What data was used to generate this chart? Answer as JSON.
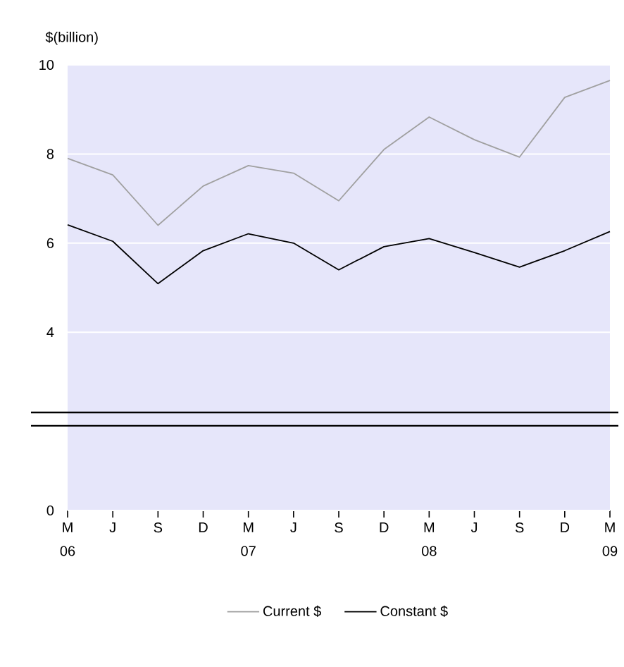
{
  "chart_data": {
    "type": "line",
    "ylabel": "$(billion)",
    "categories": [
      "M",
      "J",
      "S",
      "D",
      "M",
      "J",
      "S",
      "D",
      "M",
      "J",
      "S",
      "D",
      "M"
    ],
    "annotations": [
      "06",
      "07",
      "08",
      "09"
    ],
    "series": [
      {
        "name": "Current $",
        "color": "#a0a0a0",
        "values": [
          7.9,
          7.53,
          6.4,
          7.28,
          7.74,
          7.57,
          6.95,
          8.1,
          8.83,
          8.32,
          7.93,
          9.27,
          9.65
        ]
      },
      {
        "name": "Constant $",
        "color": "#000000",
        "values": [
          6.41,
          6.04,
          5.09,
          5.83,
          6.21,
          6.0,
          5.4,
          5.92,
          6.1,
          5.79,
          5.46,
          5.83,
          6.26
        ]
      }
    ],
    "ylim": [
      0,
      10
    ],
    "yticks": [
      0,
      4,
      6,
      8,
      10
    ],
    "ref_lines": [
      {
        "axis": "y",
        "value": 2.2,
        "color": "#000000"
      },
      {
        "axis": "y",
        "value": 1.9,
        "color": "#000000"
      }
    ],
    "grid": "y",
    "legend": "bottom",
    "marker": "none",
    "line_style": "solid"
  }
}
